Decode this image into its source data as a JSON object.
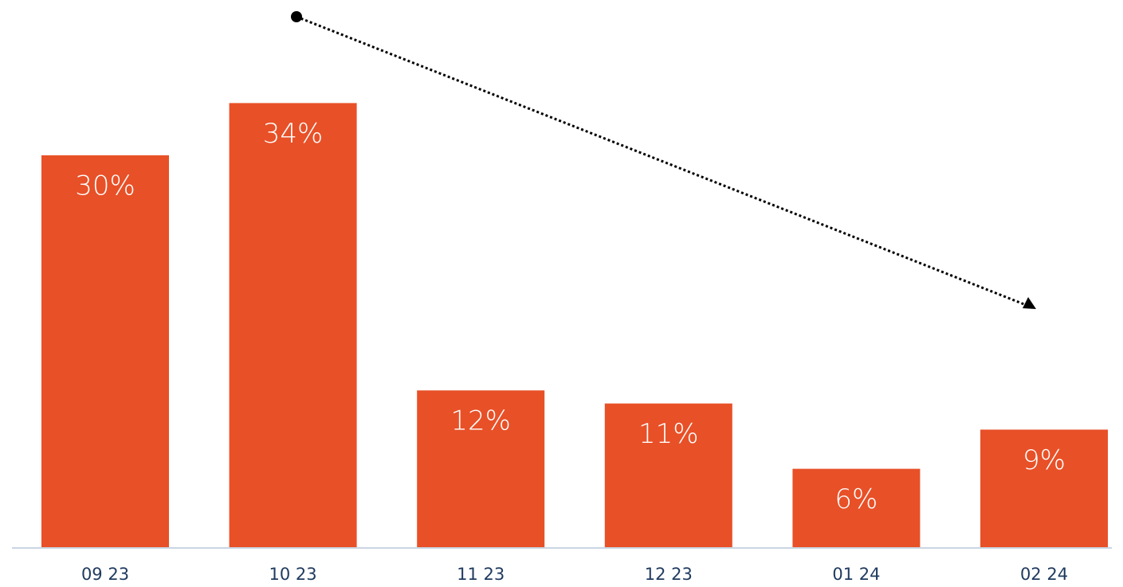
{
  "chart_data": {
    "type": "bar",
    "categories": [
      "09 23",
      "10 23",
      "11 23",
      "12 23",
      "01 24",
      "02 24"
    ],
    "values": [
      30,
      34,
      12,
      11,
      6,
      9
    ],
    "value_labels": [
      "30%",
      "34%",
      "12%",
      "11%",
      "6%",
      "9%"
    ],
    "color": "#e85027"
  }
}
